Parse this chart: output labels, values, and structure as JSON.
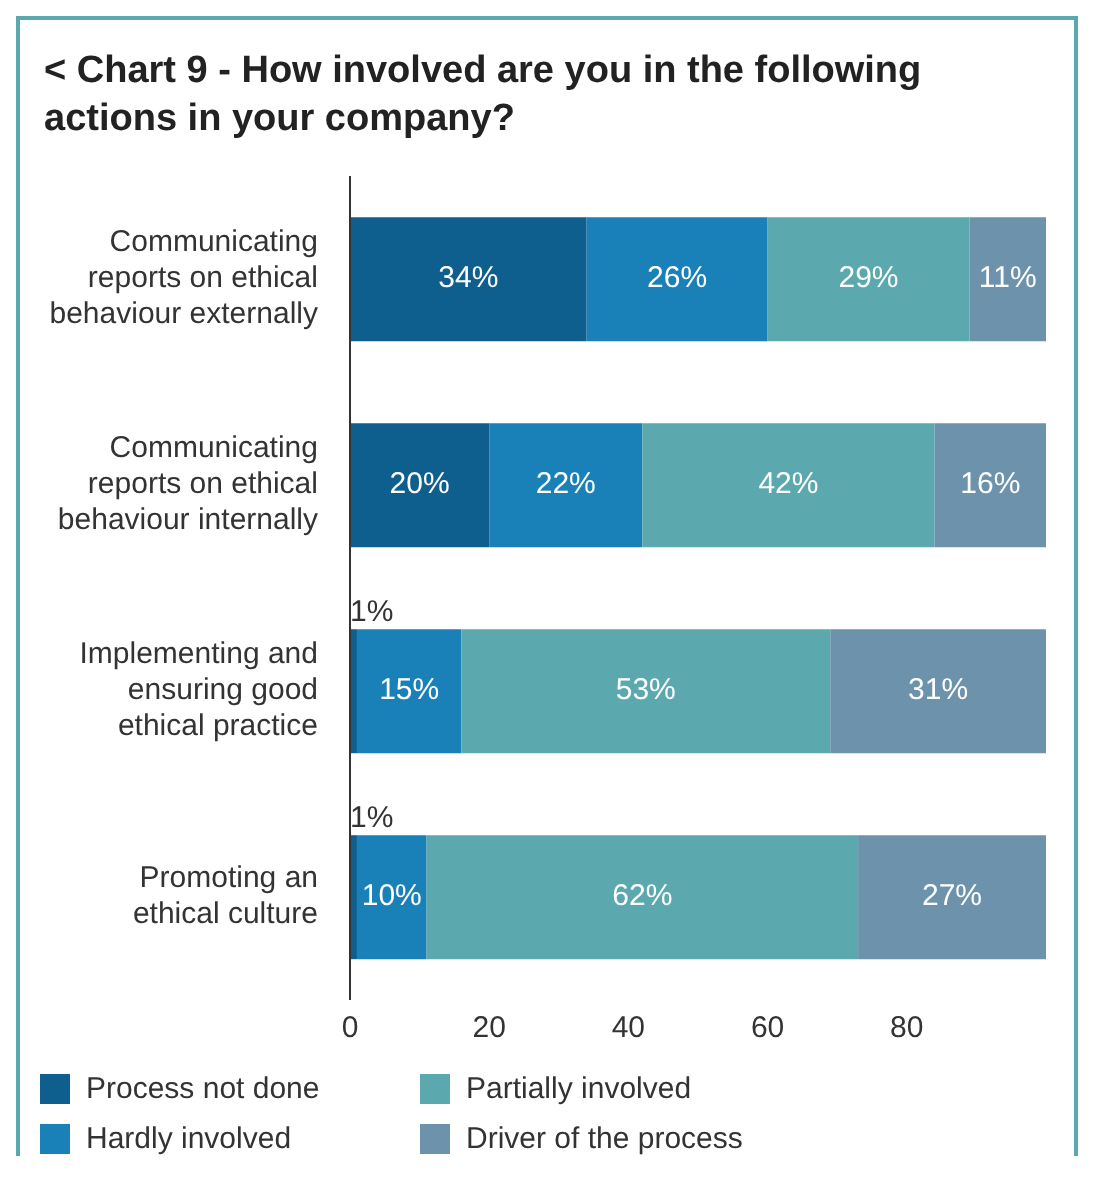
{
  "chart_data": {
    "type": "bar",
    "orientation": "horizontal",
    "stacked": true,
    "title": "< Chart 9 - How involved are you in the following actions in your company?",
    "categories": [
      "Communicating reports on ethical behaviour externally",
      "Communicating reports on ethical behaviour internally",
      "Implementing and ensuring good ethical practice",
      "Promoting an ethical culture"
    ],
    "series": [
      {
        "name": "Process not done",
        "color": "#0f5f8e",
        "values": [
          34,
          20,
          1,
          1
        ],
        "value_labels": [
          "34%",
          "20%",
          "1%",
          "1%"
        ]
      },
      {
        "name": "Hardly involved",
        "color": "#1a80b8",
        "values": [
          26,
          22,
          15,
          10
        ],
        "value_labels": [
          "26%",
          "22%",
          "15%",
          "10%"
        ]
      },
      {
        "name": "Partially involved",
        "color": "#5ba9ae",
        "values": [
          29,
          42,
          53,
          62
        ],
        "value_labels": [
          "29%",
          "42%",
          "53%",
          "62%"
        ]
      },
      {
        "name": "Driver of the process",
        "color": "#6d93ac",
        "values": [
          11,
          16,
          31,
          27
        ],
        "value_labels": [
          "11%",
          "16%",
          "31%",
          "27%"
        ]
      }
    ],
    "xlim": [
      0,
      100
    ],
    "xticks": [
      0,
      20,
      40,
      60,
      80
    ],
    "grid": false,
    "legend": "bottom"
  }
}
